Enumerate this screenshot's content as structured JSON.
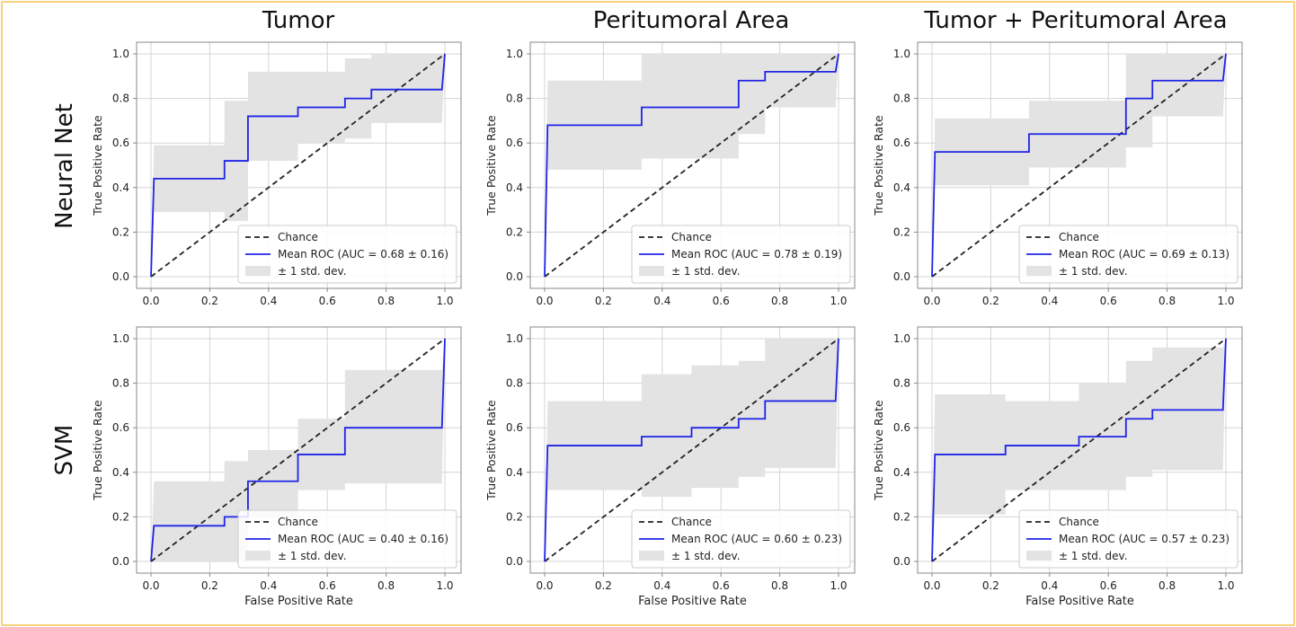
{
  "colors": {
    "frame": "#f6d27b",
    "roc": "#1f24e6",
    "chance": "#222222",
    "std_band": "#e3e3e3",
    "grid": "#d4d4d4",
    "axes": "#888888"
  },
  "column_titles": [
    "Tumor",
    "Peritumoral Area",
    "Tumor + Peritumoral Area"
  ],
  "row_titles": [
    "Neural Net",
    "SVM"
  ],
  "chart_data": [
    {
      "type": "line",
      "row": 0,
      "col": 0,
      "xlabel": "",
      "ylabel": "True Positive Rate",
      "xlim": [
        0,
        1
      ],
      "ylim": [
        0,
        1
      ],
      "grid": true,
      "legend_position": "lower-right",
      "x_ticks": [
        "0.0",
        "0.2",
        "0.4",
        "0.6",
        "0.8",
        "1.0"
      ],
      "y_ticks": [
        "0.0",
        "0.2",
        "0.4",
        "0.6",
        "0.8",
        "1.0"
      ],
      "legend": [
        "Chance",
        "Mean ROC (AUC = 0.68 ± 0.16)",
        "± 1 std. dev."
      ],
      "mean_roc": {
        "x": [
          0,
          0.01,
          0.01,
          0.25,
          0.25,
          0.33,
          0.33,
          0.5,
          0.5,
          0.66,
          0.66,
          0.75,
          0.75,
          0.99,
          1.0
        ],
        "y": [
          0,
          0.44,
          0.44,
          0.44,
          0.52,
          0.52,
          0.72,
          0.72,
          0.76,
          0.76,
          0.8,
          0.8,
          0.84,
          0.84,
          1.0
        ]
      },
      "std_band": {
        "x": [
          0,
          0.01,
          0.01,
          0.25,
          0.25,
          0.33,
          0.33,
          0.5,
          0.5,
          0.66,
          0.66,
          0.75,
          0.75,
          0.99,
          1.0
        ],
        "upper": [
          0,
          0.59,
          0.59,
          0.59,
          0.79,
          0.79,
          0.92,
          0.92,
          0.92,
          0.92,
          0.98,
          0.98,
          1.0,
          1.0,
          1.0
        ],
        "lower": [
          0,
          0.29,
          0.29,
          0.29,
          0.25,
          0.25,
          0.52,
          0.52,
          0.6,
          0.6,
          0.62,
          0.62,
          0.69,
          0.69,
          1.0
        ]
      }
    },
    {
      "type": "line",
      "row": 0,
      "col": 1,
      "xlabel": "",
      "ylabel": "True Positive Rate",
      "xlim": [
        0,
        1
      ],
      "ylim": [
        0,
        1
      ],
      "grid": true,
      "legend_position": "lower-right",
      "x_ticks": [
        "0.0",
        "0.2",
        "0.4",
        "0.6",
        "0.8",
        "1.0"
      ],
      "y_ticks": [
        "0.0",
        "0.2",
        "0.4",
        "0.6",
        "0.8",
        "1.0"
      ],
      "legend": [
        "Chance",
        "Mean ROC (AUC = 0.78 ± 0.19)",
        "± 1 std. dev."
      ],
      "mean_roc": {
        "x": [
          0,
          0.01,
          0.01,
          0.33,
          0.33,
          0.66,
          0.66,
          0.75,
          0.75,
          0.99,
          1.0
        ],
        "y": [
          0,
          0.68,
          0.68,
          0.68,
          0.76,
          0.76,
          0.88,
          0.88,
          0.92,
          0.92,
          1.0
        ]
      },
      "std_band": {
        "x": [
          0,
          0.01,
          0.01,
          0.33,
          0.33,
          0.66,
          0.66,
          0.75,
          0.75,
          0.99,
          1.0
        ],
        "upper": [
          0,
          0.88,
          0.88,
          0.88,
          1.0,
          1.0,
          1.0,
          1.0,
          1.0,
          1.0,
          1.0
        ],
        "lower": [
          0,
          0.48,
          0.48,
          0.48,
          0.53,
          0.53,
          0.64,
          0.64,
          0.76,
          0.76,
          1.0
        ]
      }
    },
    {
      "type": "line",
      "row": 0,
      "col": 2,
      "xlabel": "",
      "ylabel": "True Positive Rate",
      "xlim": [
        0,
        1
      ],
      "ylim": [
        0,
        1
      ],
      "grid": true,
      "legend_position": "lower-right",
      "x_ticks": [
        "0.0",
        "0.2",
        "0.4",
        "0.6",
        "0.8",
        "1.0"
      ],
      "y_ticks": [
        "0.0",
        "0.2",
        "0.4",
        "0.6",
        "0.8",
        "1.0"
      ],
      "legend": [
        "Chance",
        "Mean ROC (AUC = 0.69 ± 0.13)",
        "± 1 std. dev."
      ],
      "mean_roc": {
        "x": [
          0,
          0.01,
          0.01,
          0.33,
          0.33,
          0.66,
          0.66,
          0.75,
          0.75,
          0.99,
          1.0
        ],
        "y": [
          0,
          0.56,
          0.56,
          0.56,
          0.64,
          0.64,
          0.8,
          0.8,
          0.88,
          0.88,
          1.0
        ]
      },
      "std_band": {
        "x": [
          0,
          0.01,
          0.01,
          0.33,
          0.33,
          0.66,
          0.66,
          0.75,
          0.75,
          0.99,
          1.0
        ],
        "upper": [
          0,
          0.71,
          0.71,
          0.71,
          0.79,
          0.79,
          1.0,
          1.0,
          1.0,
          1.0,
          1.0
        ],
        "lower": [
          0,
          0.41,
          0.41,
          0.41,
          0.49,
          0.49,
          0.58,
          0.58,
          0.72,
          0.72,
          1.0
        ]
      }
    },
    {
      "type": "line",
      "row": 1,
      "col": 0,
      "xlabel": "False Positive Rate",
      "ylabel": "True Positive Rate",
      "xlim": [
        0,
        1
      ],
      "ylim": [
        0,
        1
      ],
      "grid": true,
      "legend_position": "lower-right",
      "x_ticks": [
        "0.0",
        "0.2",
        "0.4",
        "0.6",
        "0.8",
        "1.0"
      ],
      "y_ticks": [
        "0.0",
        "0.2",
        "0.4",
        "0.6",
        "0.8",
        "1.0"
      ],
      "legend": [
        "Chance",
        "Mean ROC (AUC = 0.40 ± 0.16)",
        "± 1 std. dev."
      ],
      "mean_roc": {
        "x": [
          0,
          0.01,
          0.01,
          0.25,
          0.25,
          0.33,
          0.33,
          0.5,
          0.5,
          0.66,
          0.66,
          0.99,
          1.0
        ],
        "y": [
          0,
          0.16,
          0.16,
          0.16,
          0.2,
          0.2,
          0.36,
          0.36,
          0.48,
          0.48,
          0.6,
          0.6,
          1.0
        ]
      },
      "std_band": {
        "x": [
          0,
          0.01,
          0.01,
          0.25,
          0.25,
          0.33,
          0.33,
          0.5,
          0.5,
          0.66,
          0.66,
          0.99,
          1.0
        ],
        "upper": [
          0,
          0.36,
          0.36,
          0.36,
          0.45,
          0.45,
          0.5,
          0.5,
          0.64,
          0.64,
          0.86,
          0.86,
          1.0
        ],
        "lower": [
          0,
          0.0,
          0.0,
          0.0,
          0.0,
          0.0,
          0.2,
          0.2,
          0.32,
          0.32,
          0.35,
          0.35,
          1.0
        ]
      }
    },
    {
      "type": "line",
      "row": 1,
      "col": 1,
      "xlabel": "False Positive Rate",
      "ylabel": "True Positive Rate",
      "xlim": [
        0,
        1
      ],
      "ylim": [
        0,
        1
      ],
      "grid": true,
      "legend_position": "lower-right",
      "x_ticks": [
        "0.0",
        "0.2",
        "0.4",
        "0.6",
        "0.8",
        "1.0"
      ],
      "y_ticks": [
        "0.0",
        "0.2",
        "0.4",
        "0.6",
        "0.8",
        "1.0"
      ],
      "legend": [
        "Chance",
        "Mean ROC (AUC = 0.60 ± 0.23)",
        "± 1 std. dev."
      ],
      "mean_roc": {
        "x": [
          0,
          0.01,
          0.01,
          0.33,
          0.33,
          0.5,
          0.5,
          0.66,
          0.66,
          0.75,
          0.75,
          0.99,
          1.0
        ],
        "y": [
          0,
          0.52,
          0.52,
          0.52,
          0.56,
          0.56,
          0.6,
          0.6,
          0.64,
          0.64,
          0.72,
          0.72,
          1.0
        ]
      },
      "std_band": {
        "x": [
          0,
          0.01,
          0.01,
          0.33,
          0.33,
          0.5,
          0.5,
          0.66,
          0.66,
          0.75,
          0.75,
          0.99,
          1.0
        ],
        "upper": [
          0,
          0.72,
          0.72,
          0.72,
          0.84,
          0.84,
          0.88,
          0.88,
          0.9,
          0.9,
          1.0,
          1.0,
          1.0
        ],
        "lower": [
          0,
          0.32,
          0.32,
          0.32,
          0.29,
          0.29,
          0.33,
          0.33,
          0.38,
          0.38,
          0.42,
          0.42,
          1.0
        ]
      }
    },
    {
      "type": "line",
      "row": 1,
      "col": 2,
      "xlabel": "False Positive Rate",
      "ylabel": "True Positive Rate",
      "xlim": [
        0,
        1
      ],
      "ylim": [
        0,
        1
      ],
      "grid": true,
      "legend_position": "lower-right",
      "x_ticks": [
        "0.0",
        "0.2",
        "0.4",
        "0.6",
        "0.8",
        "1.0"
      ],
      "y_ticks": [
        "0.0",
        "0.2",
        "0.4",
        "0.6",
        "0.8",
        "1.0"
      ],
      "legend": [
        "Chance",
        "Mean ROC (AUC = 0.57 ± 0.23)",
        "± 1 std. dev."
      ],
      "mean_roc": {
        "x": [
          0,
          0.01,
          0.01,
          0.25,
          0.25,
          0.5,
          0.5,
          0.66,
          0.66,
          0.75,
          0.75,
          0.99,
          1.0
        ],
        "y": [
          0,
          0.48,
          0.48,
          0.48,
          0.52,
          0.52,
          0.56,
          0.56,
          0.64,
          0.64,
          0.68,
          0.68,
          1.0
        ]
      },
      "std_band": {
        "x": [
          0,
          0.01,
          0.01,
          0.25,
          0.25,
          0.5,
          0.5,
          0.66,
          0.66,
          0.75,
          0.75,
          0.99,
          1.0
        ],
        "upper": [
          0,
          0.75,
          0.75,
          0.75,
          0.72,
          0.72,
          0.8,
          0.8,
          0.9,
          0.9,
          0.96,
          0.96,
          1.0
        ],
        "lower": [
          0,
          0.21,
          0.21,
          0.21,
          0.32,
          0.32,
          0.32,
          0.32,
          0.38,
          0.38,
          0.41,
          0.41,
          1.0
        ]
      }
    }
  ]
}
